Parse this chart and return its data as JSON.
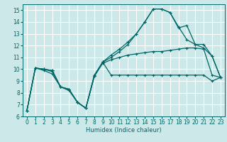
{
  "title": "",
  "xlabel": "Humidex (Indice chaleur)",
  "background_color": "#cce8e8",
  "grid_color": "#ffffff",
  "line_color": "#006666",
  "xlim": [
    -0.5,
    23.5
  ],
  "ylim": [
    6,
    15.5
  ],
  "yticks": [
    6,
    7,
    8,
    9,
    10,
    11,
    12,
    13,
    14,
    15
  ],
  "xticks": [
    0,
    1,
    2,
    3,
    4,
    5,
    6,
    7,
    8,
    9,
    10,
    11,
    12,
    13,
    14,
    15,
    16,
    17,
    18,
    19,
    20,
    21,
    22,
    23
  ],
  "line1_x": [
    0,
    1,
    2,
    3,
    4,
    5,
    6,
    7,
    8,
    9,
    10,
    11,
    12,
    13,
    14,
    15,
    16,
    17,
    18,
    19,
    20,
    21,
    22,
    23
  ],
  "line1_y": [
    6.5,
    10.1,
    9.9,
    9.6,
    8.5,
    8.3,
    7.2,
    6.7,
    9.5,
    10.6,
    9.5,
    9.5,
    9.5,
    9.5,
    9.5,
    9.5,
    9.5,
    9.5,
    9.5,
    9.5,
    9.5,
    9.5,
    9.0,
    9.3
  ],
  "line2_x": [
    0,
    1,
    2,
    3,
    4,
    5,
    6,
    7,
    8,
    9,
    10,
    11,
    12,
    13,
    14,
    15,
    16,
    17,
    18,
    19,
    20,
    21,
    22,
    23
  ],
  "line2_y": [
    6.5,
    10.1,
    10.0,
    9.8,
    8.5,
    8.2,
    7.2,
    6.7,
    9.4,
    10.5,
    10.8,
    11.0,
    11.2,
    11.3,
    11.4,
    11.5,
    11.5,
    11.6,
    11.7,
    11.8,
    11.8,
    11.7,
    9.5,
    9.3
  ],
  "line3_x": [
    0,
    1,
    2,
    3,
    4,
    5,
    6,
    7,
    8,
    9,
    10,
    11,
    12,
    13,
    14,
    15,
    16,
    17,
    18,
    19,
    20,
    21,
    22,
    23
  ],
  "line3_y": [
    6.5,
    10.1,
    10.0,
    9.9,
    8.5,
    8.3,
    7.2,
    6.7,
    9.4,
    10.6,
    11.2,
    11.7,
    12.3,
    13.0,
    14.0,
    15.1,
    15.1,
    14.8,
    13.6,
    12.5,
    12.1,
    11.8,
    11.1,
    9.3
  ],
  "line4_x": [
    0,
    1,
    2,
    3,
    4,
    5,
    6,
    7,
    8,
    9,
    10,
    11,
    12,
    13,
    14,
    15,
    16,
    17,
    18,
    19,
    20,
    21,
    22,
    23
  ],
  "line4_y": [
    6.5,
    10.1,
    10.0,
    9.9,
    8.5,
    8.3,
    7.2,
    6.7,
    9.4,
    10.6,
    11.0,
    11.5,
    12.1,
    13.0,
    14.0,
    15.1,
    15.1,
    14.8,
    13.5,
    13.7,
    12.1,
    12.1,
    11.1,
    9.3
  ]
}
